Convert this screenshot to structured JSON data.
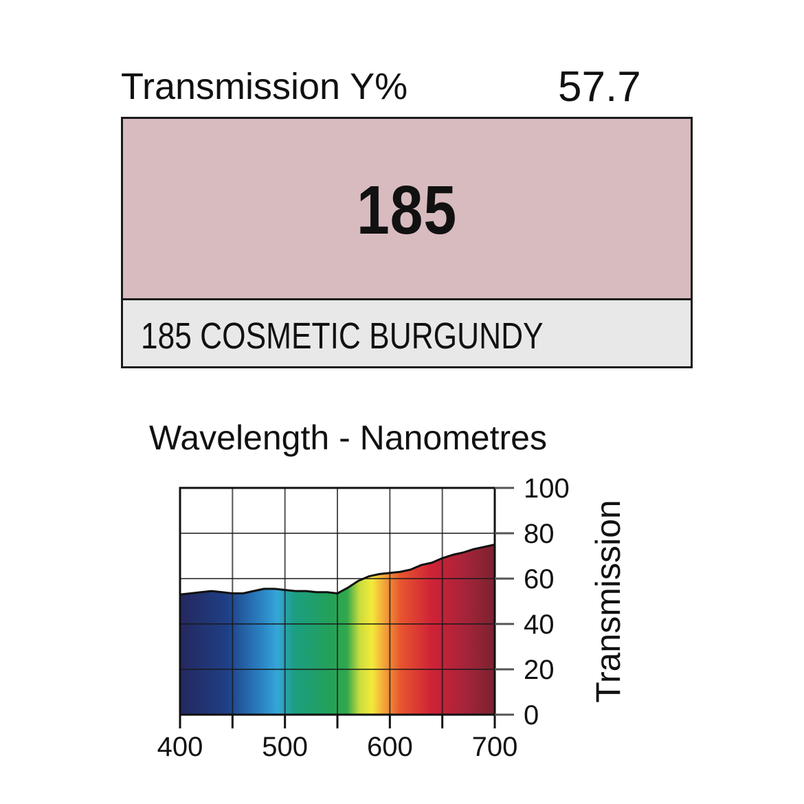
{
  "header": {
    "transmission_label": "Transmission Y%",
    "transmission_value": "57.7"
  },
  "swatch": {
    "number": "185",
    "name": "185 COSMETIC BURGUNDY",
    "color": "#d8bbbf"
  },
  "chart_data": {
    "type": "area",
    "xlabel": "Wavelength - Nanometres",
    "ylabel": "Transmission",
    "xlim": [
      400,
      700
    ],
    "ylim": [
      0,
      100
    ],
    "x_ticks": [
      400,
      500,
      600,
      700
    ],
    "x_tick_labels": [
      "400",
      "500",
      "600",
      "700"
    ],
    "y_ticks": [
      0,
      20,
      40,
      60,
      80,
      100
    ],
    "y_tick_labels": [
      "0",
      "20",
      "40",
      "60",
      "80",
      "100"
    ],
    "grid": true,
    "series": [
      {
        "x": [
          400,
          410,
          420,
          430,
          440,
          450,
          460,
          470,
          480,
          490,
          500,
          510,
          520,
          530,
          540,
          550,
          560,
          570,
          580,
          590,
          600,
          610,
          620,
          630,
          640,
          650,
          660,
          670,
          680,
          690,
          700
        ],
        "values": [
          53,
          53.5,
          54,
          54.5,
          54,
          53.5,
          53.5,
          54.5,
          55.5,
          55.5,
          55,
          54.5,
          54.5,
          54,
          54,
          53.5,
          56,
          59,
          61,
          62,
          62.5,
          63,
          64,
          66,
          67,
          69,
          70.5,
          71.5,
          73,
          74,
          75
        ]
      }
    ]
  }
}
